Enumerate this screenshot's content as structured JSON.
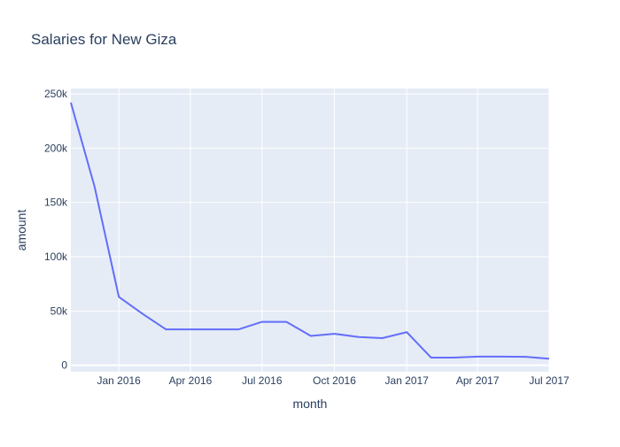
{
  "chart_data": {
    "type": "line",
    "title": "Salaries for New Giza",
    "xlabel": "month",
    "ylabel": "amount",
    "x": [
      "2015-11-01",
      "2015-12-01",
      "2016-01-01",
      "2016-02-01",
      "2016-03-01",
      "2016-04-01",
      "2016-05-01",
      "2016-06-01",
      "2016-07-01",
      "2016-08-01",
      "2016-09-01",
      "2016-10-01",
      "2016-11-01",
      "2016-12-01",
      "2017-01-01",
      "2017-02-01",
      "2017-03-01",
      "2017-04-01",
      "2017-05-01",
      "2017-06-01",
      "2017-07-01"
    ],
    "series": [
      {
        "values": [
          242000,
          165000,
          63000,
          47000,
          33000,
          33000,
          33000,
          33000,
          40000,
          40000,
          27000,
          29000,
          26000,
          25000,
          30500,
          7000,
          7000,
          8000,
          8000,
          7800,
          6000
        ]
      }
    ],
    "ylim": [
      -6000,
      255000
    ],
    "xlim": [
      "2015-11-01",
      "2017-07-01"
    ],
    "yticks": [
      0,
      50000,
      100000,
      150000,
      200000,
      250000
    ],
    "ytick_labels": [
      "0",
      "50k",
      "100k",
      "150k",
      "200k",
      "250k"
    ],
    "xticks": [
      "2016-01-01",
      "2016-04-01",
      "2016-07-01",
      "2016-10-01",
      "2017-01-01",
      "2017-04-01",
      "2017-07-01"
    ],
    "xtick_labels": [
      "Jan 2016",
      "Apr 2016",
      "Jul 2016",
      "Oct 2016",
      "Jan 2017",
      "Apr 2017",
      "Jul 2017"
    ],
    "grid": true,
    "colors": {
      "plot_bg": "#e5ecf6",
      "grid": "#ffffff",
      "line": "#636efa",
      "text": "#2a3f5f"
    }
  }
}
